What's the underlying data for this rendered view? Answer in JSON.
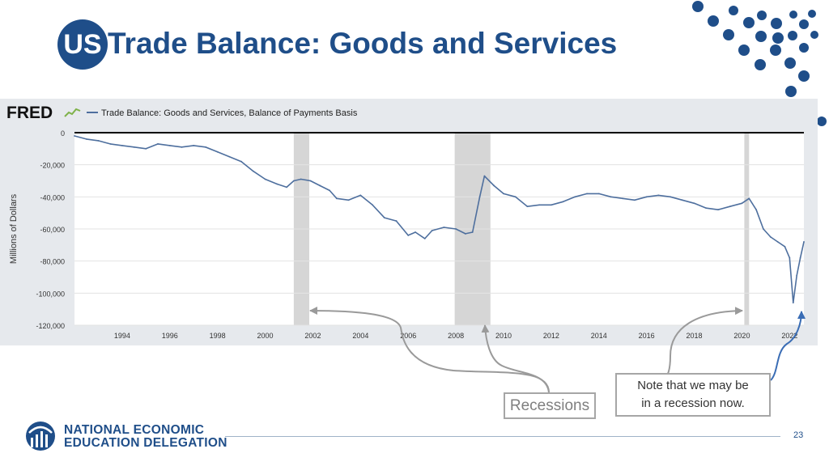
{
  "slide": {
    "badge": "US",
    "title": "Trade Balance: Goods and Services",
    "page_number": "23",
    "org_line1": "NATIONAL ECONOMIC",
    "org_line2": "EDUCATION DELEGATION",
    "recessions_label": "Recessions",
    "note_line1": "Note that we may be",
    "note_line2": "in a recession now."
  },
  "colors": {
    "brand": "#1f4e89",
    "series": "#4e6f9e",
    "recession": "#d6d6d6",
    "panel": "#e6e9ed",
    "plot_bg": "#ffffff",
    "grid": "#e3e3e3",
    "callout_border": "#a6a6a6",
    "arrow_gray": "#9a9a9a",
    "arrow_blue": "#3a6db5"
  },
  "chart_data": {
    "type": "line",
    "source": "FRED",
    "legend": "Trade Balance: Goods and Services, Balance of Payments Basis",
    "legend_position": "top-left",
    "title": "",
    "xlabel": "",
    "ylabel": "Millions of Dollars",
    "xlim": [
      1992.0,
      2022.6
    ],
    "ylim": [
      -120000,
      0
    ],
    "x_ticks": [
      1994,
      1996,
      1998,
      2000,
      2002,
      2004,
      2006,
      2008,
      2010,
      2012,
      2014,
      2016,
      2018,
      2020,
      2022
    ],
    "y_ticks": [
      0,
      -20000,
      -40000,
      -60000,
      -80000,
      -100000,
      -120000
    ],
    "y_tick_labels": [
      "0",
      "-20,000",
      "-40,000",
      "-60,000",
      "-80,000",
      "-100,000",
      "-120,000"
    ],
    "grid": true,
    "zero_line": true,
    "recessions": [
      [
        2001.2,
        2001.85
      ],
      [
        2007.95,
        2009.45
      ],
      [
        2020.1,
        2020.3
      ]
    ],
    "series": [
      {
        "name": "Trade Balance: Goods and Services, Balance of Payments Basis",
        "x": [
          1992.0,
          1992.5,
          1993.0,
          1993.5,
          1994.0,
          1994.5,
          1995.0,
          1995.5,
          1996.0,
          1996.5,
          1997.0,
          1997.5,
          1998.0,
          1998.5,
          1999.0,
          1999.5,
          2000.0,
          2000.5,
          2000.9,
          2001.2,
          2001.5,
          2001.9,
          2002.3,
          2002.7,
          2003.0,
          2003.5,
          2004.0,
          2004.5,
          2005.0,
          2005.5,
          2006.0,
          2006.3,
          2006.7,
          2007.0,
          2007.5,
          2008.0,
          2008.4,
          2008.7,
          2009.0,
          2009.2,
          2009.6,
          2010.0,
          2010.5,
          2011.0,
          2011.5,
          2012.0,
          2012.5,
          2013.0,
          2013.5,
          2014.0,
          2014.5,
          2015.0,
          2015.5,
          2016.0,
          2016.5,
          2017.0,
          2017.5,
          2018.0,
          2018.5,
          2019.0,
          2019.5,
          2020.0,
          2020.3,
          2020.6,
          2020.9,
          2021.2,
          2021.5,
          2021.8,
          2022.0,
          2022.15,
          2022.3,
          2022.45,
          2022.6
        ],
        "values": [
          -2000,
          -4000,
          -5000,
          -7000,
          -8000,
          -9000,
          -10000,
          -7000,
          -8000,
          -9000,
          -8000,
          -9000,
          -12000,
          -15000,
          -18000,
          -24000,
          -29000,
          -32000,
          -34000,
          -30000,
          -29000,
          -30000,
          -33000,
          -36000,
          -41000,
          -42000,
          -39000,
          -45000,
          -53000,
          -55000,
          -64000,
          -62000,
          -66000,
          -61000,
          -59000,
          -60000,
          -63000,
          -62000,
          -40000,
          -27000,
          -33000,
          -38000,
          -40000,
          -46000,
          -45000,
          -45000,
          -43000,
          -40000,
          -38000,
          -38000,
          -40000,
          -41000,
          -42000,
          -40000,
          -39000,
          -40000,
          -42000,
          -44000,
          -47000,
          -48000,
          -46000,
          -44000,
          -41000,
          -48000,
          -60000,
          -65000,
          -68000,
          -71000,
          -78000,
          -106000,
          -89000,
          -78000,
          -68000
        ]
      }
    ]
  }
}
